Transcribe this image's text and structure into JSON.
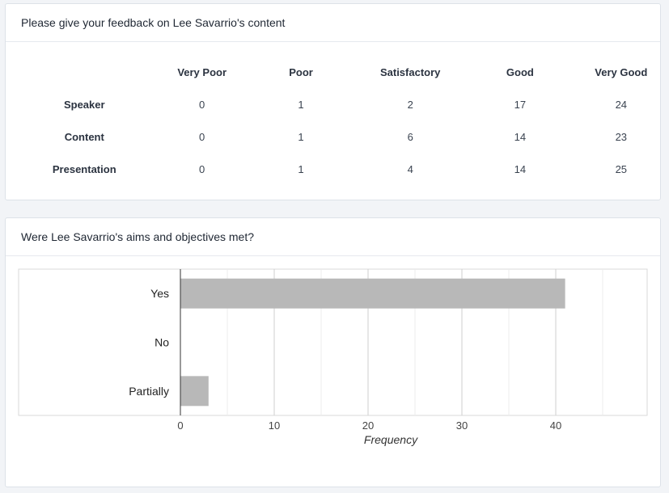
{
  "feedback_table": {
    "title": "Please give your feedback on Lee Savarrio's content",
    "columns": [
      "Very Poor",
      "Poor",
      "Satisfactory",
      "Good",
      "Very Good"
    ],
    "rows": [
      {
        "label": "Speaker",
        "values": [
          0,
          1,
          2,
          17,
          24
        ]
      },
      {
        "label": "Content",
        "values": [
          0,
          1,
          6,
          14,
          23
        ]
      },
      {
        "label": "Presentation",
        "values": [
          0,
          1,
          4,
          14,
          25
        ]
      }
    ]
  },
  "aims_chart": {
    "title": "Were Lee Savarrio's aims and objectives met?"
  },
  "chart_data": {
    "type": "bar",
    "orientation": "horizontal",
    "categories": [
      "Yes",
      "No",
      "Partially"
    ],
    "values": [
      41,
      0,
      3
    ],
    "xlabel": "Frequency",
    "ylabel": "",
    "xlim": [
      0,
      50
    ],
    "xticks": [
      0,
      10,
      20,
      30,
      40
    ],
    "grid": true,
    "bar_color": "#b8b8b8"
  }
}
